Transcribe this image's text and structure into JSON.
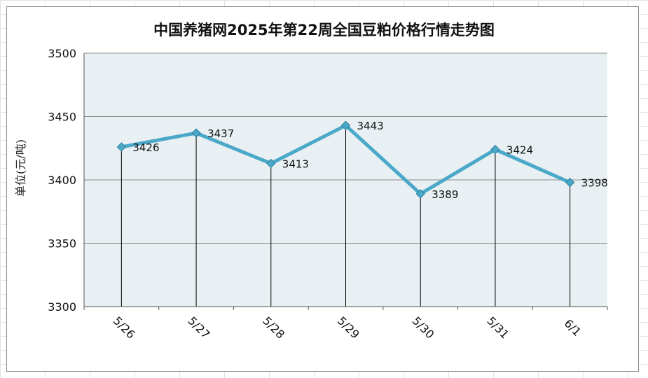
{
  "chart_data": {
    "type": "line",
    "title": "中国养猪网2025年第22周全国豆粕价格行情走势图",
    "ylabel": "单位(元/吨)",
    "xlabel": "",
    "categories": [
      "5/26",
      "5/27",
      "5/28",
      "5/29",
      "5/30",
      "5/31",
      "6/1"
    ],
    "series": [
      {
        "values": [
          3426,
          3437,
          3413,
          3443,
          3389,
          3424,
          3398
        ]
      }
    ],
    "ylim": [
      3300,
      3500
    ],
    "yticks": [
      3300,
      3350,
      3400,
      3450,
      3500
    ],
    "grid": true,
    "drop_lines": true,
    "show_data_labels": true,
    "colors": {
      "line": "#4aa8c8",
      "marker": "#4aa8c8",
      "plot_background": "#e8f0f3",
      "gridline": "#8c8c8c"
    }
  }
}
